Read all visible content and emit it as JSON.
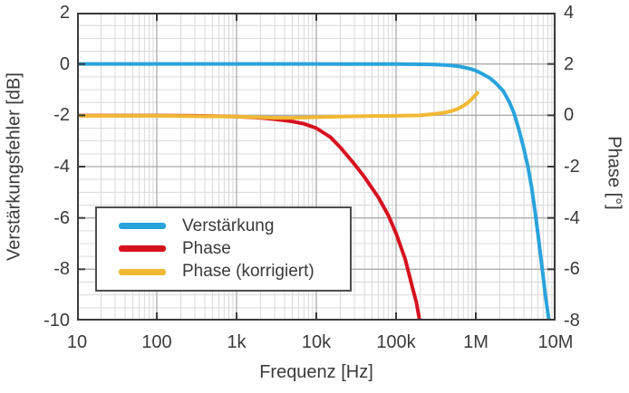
{
  "axes": {
    "x_label": "Frequenz [Hz]",
    "left_label": "Verstärkungsfehler [dB]",
    "right_label": "Phase [°]",
    "x_ticks": [
      "10",
      "100",
      "1k",
      "10k",
      "100k",
      "1M",
      "10M"
    ],
    "left_ticks": [
      "2",
      "0",
      "-2",
      "-4",
      "-6",
      "-8",
      "-10"
    ],
    "right_ticks": [
      "4",
      "2",
      "0",
      "-2",
      "-4",
      "-6",
      "-8"
    ]
  },
  "legend": {
    "items": [
      {
        "label": "Verstärkung",
        "color": "#29A3DC"
      },
      {
        "label": "Phase",
        "color": "#D6121F"
      },
      {
        "label": "Phase (korrigiert)",
        "color": "#F0B833"
      }
    ]
  },
  "colors": {
    "gain_line": "#29A3DC",
    "phase_line": "#D6121F",
    "phase_corrected_line": "#F0B833",
    "grid_minor": "#d9d9d9",
    "grid_major": "#ababab",
    "spine": "#3a3a3a",
    "text": "#3a3a3a",
    "background": "#ffffff"
  },
  "chart_data": {
    "type": "line",
    "title": "",
    "xlabel": "Frequenz [Hz]",
    "x_scale": "log",
    "x_range": [
      10,
      10000000
    ],
    "x_tick_values": [
      10,
      100,
      1000,
      10000,
      100000,
      1000000,
      10000000
    ],
    "x_tick_labels": [
      "10",
      "100",
      "1k",
      "10k",
      "100k",
      "1M",
      "10M"
    ],
    "y_left": {
      "label": "Verstärkungsfehler [dB]",
      "range": [
        -10,
        2
      ],
      "major_ticks": [
        2,
        0,
        -2,
        -4,
        -6,
        -8,
        -10
      ],
      "minor_step": 0.5
    },
    "y_right": {
      "label": "Phase [°]",
      "range": [
        -8,
        4
      ],
      "major_ticks": [
        4,
        2,
        0,
        -2,
        -4,
        -6,
        -8
      ]
    },
    "grid": "log-x major+minor, y major every 2 with minor every 0.5",
    "legend_position": "lower-left",
    "series": [
      {
        "name": "Verstärkung",
        "axis": "left",
        "unit": "dB",
        "color": "#29A3DC",
        "points": [
          [
            10,
            0
          ],
          [
            100,
            0
          ],
          [
            1000,
            0
          ],
          [
            10000,
            0
          ],
          [
            100000,
            -0.005
          ],
          [
            200000,
            -0.01
          ],
          [
            300000,
            -0.02
          ],
          [
            400000,
            -0.04
          ],
          [
            500000,
            -0.06
          ],
          [
            600000,
            -0.09
          ],
          [
            700000,
            -0.13
          ],
          [
            800000,
            -0.17
          ],
          [
            900000,
            -0.21
          ],
          [
            1000000,
            -0.26
          ],
          [
            1200000,
            -0.38
          ],
          [
            1500000,
            -0.55
          ],
          [
            1800000,
            -0.76
          ],
          [
            2200000,
            -1.05
          ],
          [
            2600000,
            -1.45
          ],
          [
            3000000,
            -1.9
          ],
          [
            3500000,
            -2.6
          ],
          [
            4000000,
            -3.3
          ],
          [
            4500000,
            -4.0
          ],
          [
            5000000,
            -4.8
          ],
          [
            5500000,
            -5.7
          ],
          [
            6000000,
            -6.6
          ],
          [
            6500000,
            -7.5
          ],
          [
            7000000,
            -8.3
          ],
          [
            7500000,
            -9.1
          ],
          [
            8000000,
            -9.7
          ],
          [
            8400000,
            -10.15
          ]
        ]
      },
      {
        "name": "Phase",
        "axis": "right",
        "unit": "deg",
        "color": "#D6121F",
        "points": [
          [
            10,
            -0.01
          ],
          [
            100,
            -0.01
          ],
          [
            300,
            -0.02
          ],
          [
            1000,
            -0.05
          ],
          [
            2000,
            -0.1
          ],
          [
            3000,
            -0.15
          ],
          [
            5000,
            -0.24
          ],
          [
            7000,
            -0.33
          ],
          [
            10000,
            -0.5
          ],
          [
            15000,
            -0.85
          ],
          [
            20000,
            -1.25
          ],
          [
            30000,
            -1.9
          ],
          [
            40000,
            -2.4
          ],
          [
            60000,
            -3.2
          ],
          [
            80000,
            -3.9
          ],
          [
            100000,
            -4.6
          ],
          [
            130000,
            -5.6
          ],
          [
            160000,
            -6.7
          ],
          [
            180000,
            -7.3
          ],
          [
            200000,
            -8.1
          ],
          [
            215000,
            -8.7
          ],
          [
            235000,
            -9.6
          ],
          [
            245000,
            -10.1
          ]
        ]
      },
      {
        "name": "Phase (korrigiert)",
        "axis": "right",
        "unit": "deg",
        "color": "#F0B833",
        "points": [
          [
            10,
            -0.02
          ],
          [
            100,
            -0.02
          ],
          [
            1000,
            -0.05
          ],
          [
            2000,
            -0.08
          ],
          [
            3000,
            -0.1
          ],
          [
            5000,
            -0.1
          ],
          [
            8000,
            -0.08
          ],
          [
            10000,
            -0.07
          ],
          [
            20000,
            -0.05
          ],
          [
            50000,
            -0.03
          ],
          [
            100000,
            -0.02
          ],
          [
            200000,
            0.0
          ],
          [
            300000,
            0.05
          ],
          [
            400000,
            0.1
          ],
          [
            500000,
            0.17
          ],
          [
            600000,
            0.26
          ],
          [
            700000,
            0.37
          ],
          [
            800000,
            0.5
          ],
          [
            900000,
            0.65
          ],
          [
            1000000,
            0.8
          ],
          [
            1050000,
            0.88
          ]
        ]
      }
    ]
  }
}
